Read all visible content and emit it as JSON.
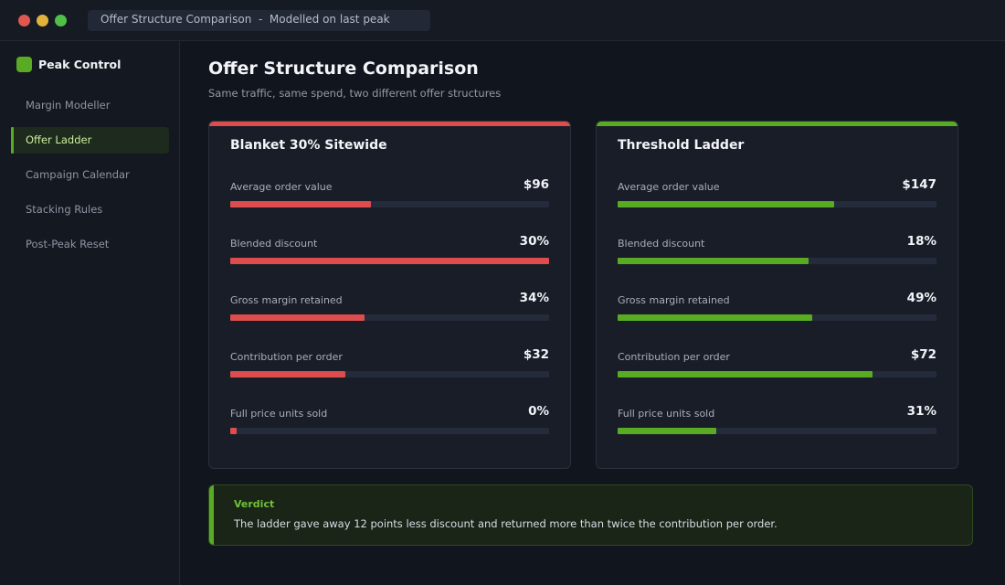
{
  "window": {
    "address": "Offer Structure Comparison  -  Modelled on last peak"
  },
  "sidebar": {
    "brand": "Peak Control",
    "items": [
      {
        "label": "Margin Modeller",
        "active": false
      },
      {
        "label": "Offer Ladder",
        "active": true
      },
      {
        "label": "Campaign Calendar",
        "active": false
      },
      {
        "label": "Stacking Rules",
        "active": false
      },
      {
        "label": "Post-Peak Reset",
        "active": false
      }
    ]
  },
  "page": {
    "title": "Offer Structure Comparison",
    "subtitle": "Same traffic, same spend, two different offer structures"
  },
  "cards": [
    {
      "title": "Blanket 30% Sitewide",
      "accent": "#dd4d4d",
      "metrics": [
        {
          "label": "Average order value",
          "value": "$96",
          "fill_pct": 44
        },
        {
          "label": "Blended discount",
          "value": "30%",
          "fill_pct": 100
        },
        {
          "label": "Gross margin retained",
          "value": "34%",
          "fill_pct": 42
        },
        {
          "label": "Contribution per order",
          "value": "$32",
          "fill_pct": 36
        },
        {
          "label": "Full price units sold",
          "value": "0%",
          "fill_pct": 2
        }
      ]
    },
    {
      "title": "Threshold Ladder",
      "accent": "#5aab24",
      "metrics": [
        {
          "label": "Average order value",
          "value": "$147",
          "fill_pct": 68
        },
        {
          "label": "Blended discount",
          "value": "18%",
          "fill_pct": 60
        },
        {
          "label": "Gross margin retained",
          "value": "49%",
          "fill_pct": 61
        },
        {
          "label": "Contribution per order",
          "value": "$72",
          "fill_pct": 80
        },
        {
          "label": "Full price units sold",
          "value": "31%",
          "fill_pct": 31
        }
      ]
    }
  ],
  "verdict": {
    "label": "Verdict",
    "text": "The ladder gave away 12 points less discount and returned more than twice the contribution per order."
  }
}
